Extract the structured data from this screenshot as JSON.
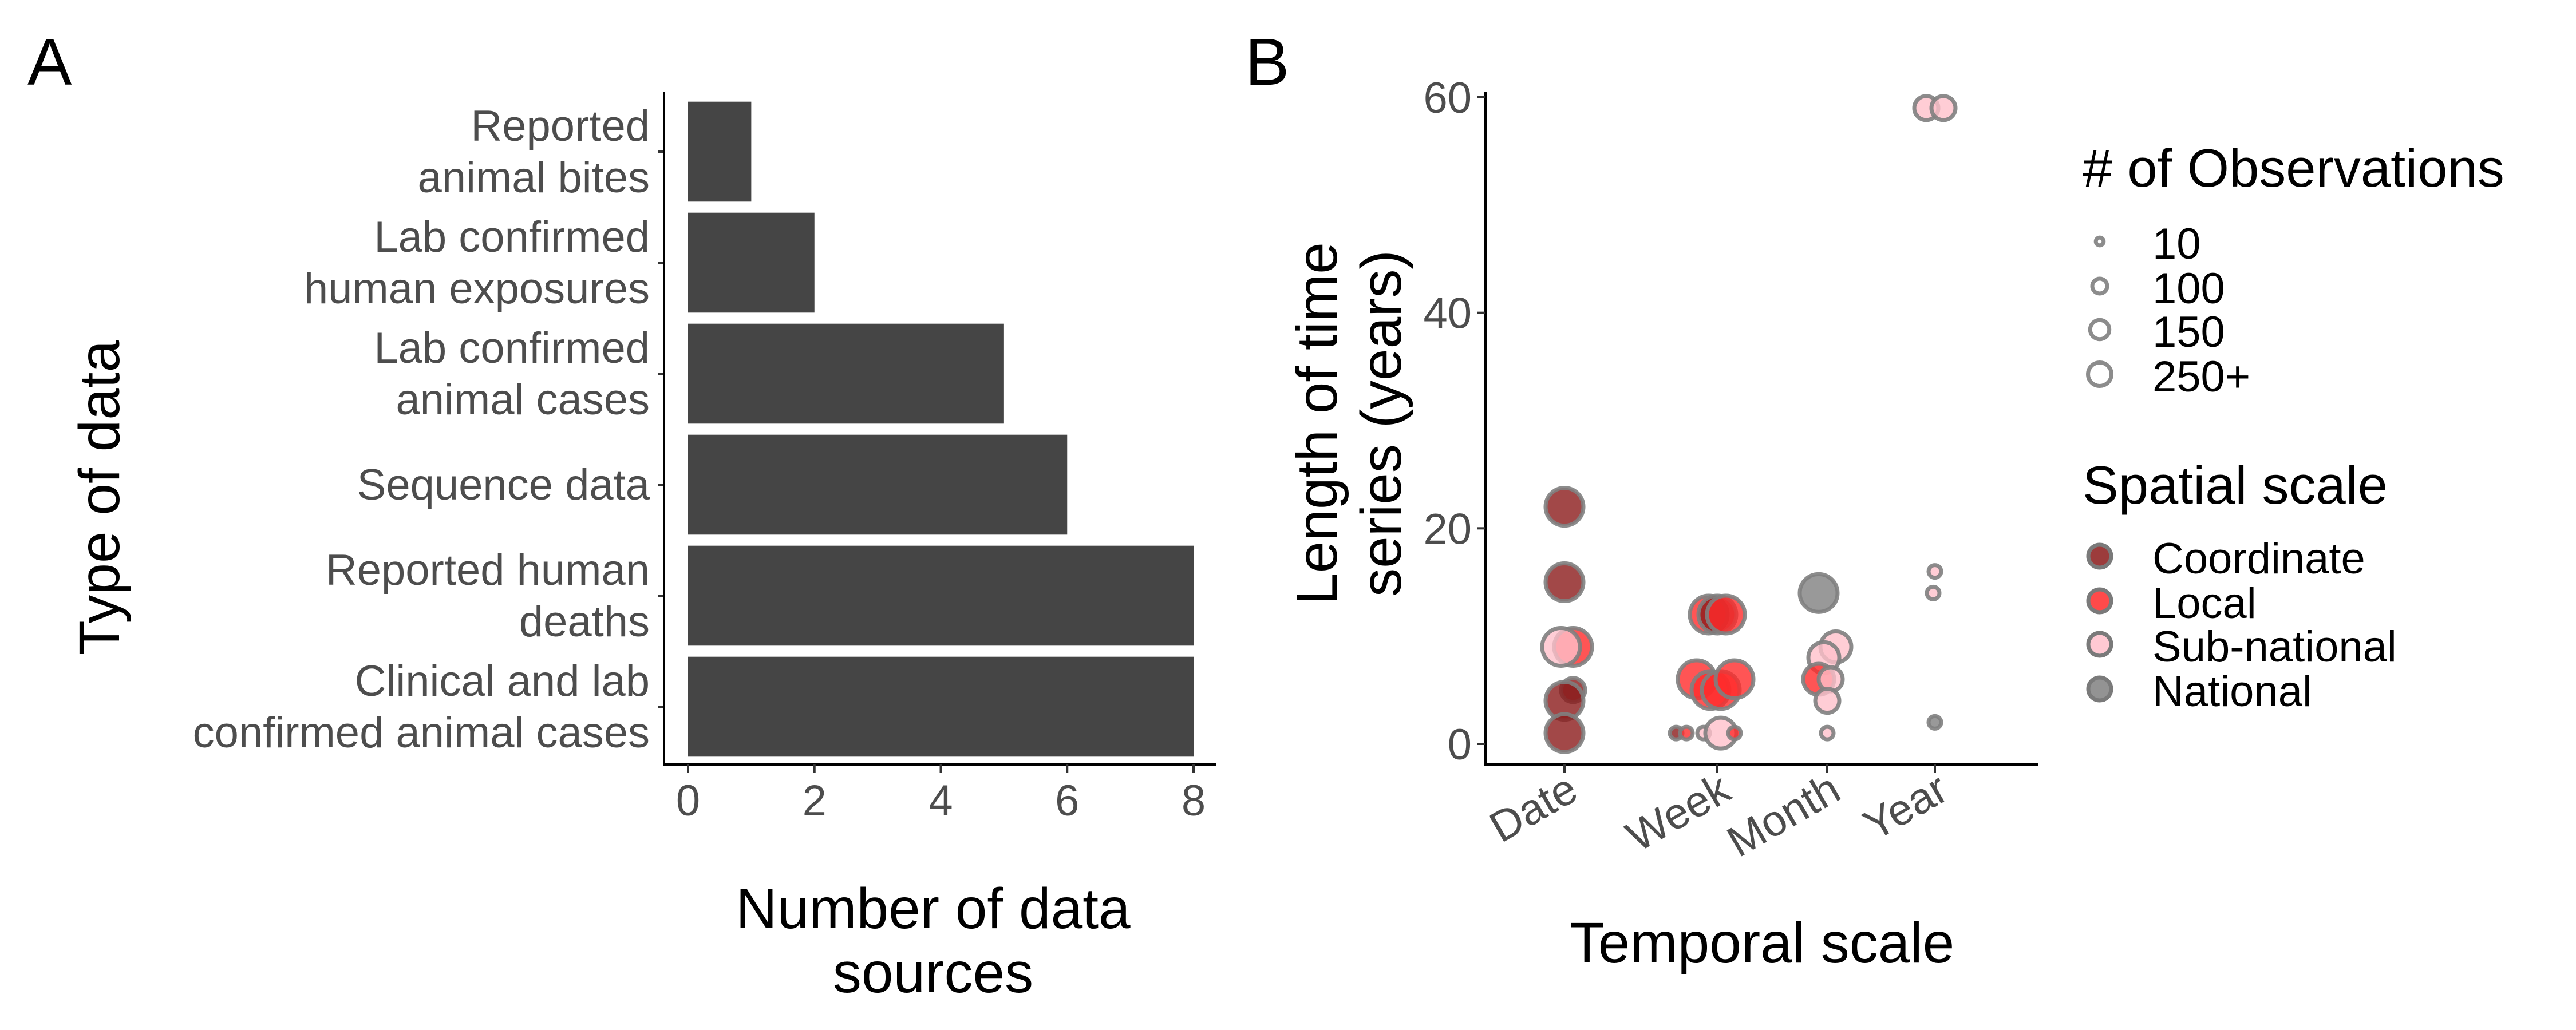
{
  "chart_data": [
    {
      "panel": "A",
      "type": "bar",
      "orientation": "horizontal",
      "categories": [
        "Reported\nanimal bites",
        "Lab confirmed\nhuman exposures",
        "Lab confirmed\nanimal cases",
        "Sequence data",
        "Reported human\ndeaths",
        "Clinical and lab\nconfirmed animal cases"
      ],
      "values": [
        1,
        2,
        5,
        6,
        8,
        8
      ],
      "xlabel": "Number of data\nsources",
      "ylabel": "Type of data",
      "xlim": [
        0,
        8
      ],
      "xticks": [
        0,
        2,
        4,
        6,
        8
      ],
      "bar_color": "#454545",
      "grid": false
    },
    {
      "panel": "B",
      "type": "scatter",
      "xlabel": "Temporal scale",
      "ylabel": "Length of time\nseries (years)",
      "x_categories": [
        "Date",
        "Week",
        "Month",
        "Year"
      ],
      "ylim": [
        0,
        60
      ],
      "yticks": [
        0,
        20,
        40,
        60
      ],
      "grid": false,
      "size_legend": {
        "title": "# of Observations",
        "entries": [
          "10",
          "100",
          "150",
          "250+"
        ]
      },
      "color_legend": {
        "title": "Spatial scale",
        "entries": [
          {
            "label": "Coordinate",
            "color": "#8b1a1a"
          },
          {
            "label": "Local",
            "color": "#ff2a2a"
          },
          {
            "label": "Sub-national",
            "color": "#ffc0cb"
          },
          {
            "label": "National",
            "color": "#808080"
          }
        ]
      },
      "points": [
        {
          "x": "Date",
          "jitter": 0.0,
          "y": 22,
          "size": "250+",
          "scale": "Coordinate"
        },
        {
          "x": "Date",
          "jitter": 0.0,
          "y": 15,
          "size": "250+",
          "scale": "Coordinate"
        },
        {
          "x": "Date",
          "jitter": 0.05,
          "y": 9,
          "size": "250+",
          "scale": "Local"
        },
        {
          "x": "Date",
          "jitter": -0.02,
          "y": 9,
          "size": "250+",
          "scale": "Sub-national"
        },
        {
          "x": "Date",
          "jitter": 0.05,
          "y": 5,
          "size": "100",
          "scale": "Coordinate"
        },
        {
          "x": "Date",
          "jitter": 0.0,
          "y": 4,
          "size": "250+",
          "scale": "Coordinate"
        },
        {
          "x": "Date",
          "jitter": 0.0,
          "y": 1,
          "size": "250+",
          "scale": "Coordinate"
        },
        {
          "x": "Week",
          "jitter": -0.05,
          "y": 12,
          "size": "250+",
          "scale": "Local"
        },
        {
          "x": "Week",
          "jitter": 0.0,
          "y": 12,
          "size": "250+",
          "scale": "Coordinate"
        },
        {
          "x": "Week",
          "jitter": 0.05,
          "y": 12,
          "size": "250+",
          "scale": "Local"
        },
        {
          "x": "Week",
          "jitter": -0.12,
          "y": 6,
          "size": "250+",
          "scale": "Local"
        },
        {
          "x": "Week",
          "jitter": -0.04,
          "y": 5,
          "size": "250+",
          "scale": "Local"
        },
        {
          "x": "Week",
          "jitter": 0.02,
          "y": 5,
          "size": "250+",
          "scale": "Local"
        },
        {
          "x": "Week",
          "jitter": 0.1,
          "y": 6,
          "size": "250+",
          "scale": "Local"
        },
        {
          "x": "Week",
          "jitter": -0.24,
          "y": 1,
          "size": "10",
          "scale": "Coordinate"
        },
        {
          "x": "Week",
          "jitter": -0.18,
          "y": 1,
          "size": "10",
          "scale": "Local"
        },
        {
          "x": "Week",
          "jitter": -0.08,
          "y": 1,
          "size": "10",
          "scale": "Sub-national"
        },
        {
          "x": "Week",
          "jitter": 0.02,
          "y": 1,
          "size": "150",
          "scale": "Sub-national"
        },
        {
          "x": "Week",
          "jitter": 0.1,
          "y": 1,
          "size": "10",
          "scale": "Local"
        },
        {
          "x": "Month",
          "jitter": -0.05,
          "y": 14,
          "size": "250+",
          "scale": "National"
        },
        {
          "x": "Month",
          "jitter": 0.05,
          "y": 9,
          "size": "150",
          "scale": "Sub-national"
        },
        {
          "x": "Month",
          "jitter": -0.02,
          "y": 8,
          "size": "150",
          "scale": "Sub-national"
        },
        {
          "x": "Month",
          "jitter": -0.05,
          "y": 6,
          "size": "150",
          "scale": "Local"
        },
        {
          "x": "Month",
          "jitter": 0.02,
          "y": 6,
          "size": "100",
          "scale": "Sub-national"
        },
        {
          "x": "Month",
          "jitter": 0.0,
          "y": 4,
          "size": "100",
          "scale": "Sub-national"
        },
        {
          "x": "Month",
          "jitter": 0.0,
          "y": 1,
          "size": "10",
          "scale": "Sub-national"
        },
        {
          "x": "Year",
          "jitter": -0.05,
          "y": 59,
          "size": "100",
          "scale": "Sub-national"
        },
        {
          "x": "Year",
          "jitter": 0.05,
          "y": 59,
          "size": "100",
          "scale": "Sub-national"
        },
        {
          "x": "Year",
          "jitter": 0.0,
          "y": 16,
          "size": "10",
          "scale": "Sub-national"
        },
        {
          "x": "Year",
          "jitter": -0.01,
          "y": 14,
          "size": "10",
          "scale": "Sub-national"
        },
        {
          "x": "Year",
          "jitter": 0.0,
          "y": 2,
          "size": "10",
          "scale": "National"
        }
      ]
    }
  ]
}
